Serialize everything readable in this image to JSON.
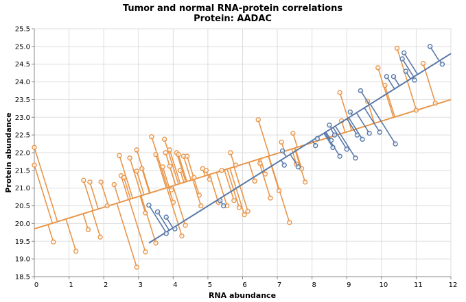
{
  "chart_data": {
    "type": "scatter",
    "title": "Tumor and normal RNA-protein correlations",
    "subtitle": "Protein: AADAC",
    "xlabel": "RNA abundance",
    "ylabel": "Protein abundance",
    "xlim": [
      0,
      12
    ],
    "ylim": [
      18.5,
      25.5
    ],
    "xticks": [
      "0",
      "1",
      "2",
      "3",
      "4",
      "5",
      "6",
      "7",
      "8",
      "9",
      "10",
      "11",
      "12"
    ],
    "yticks": [
      "18.5",
      "19.0",
      "19.5",
      "20.0",
      "20.5",
      "21.0",
      "21.5",
      "22.0",
      "22.5",
      "23.0",
      "23.5",
      "24.0",
      "24.5",
      "25.0",
      "25.5"
    ],
    "grid": true,
    "colors": {
      "orange": "#e8964a",
      "blue": "#5878a8"
    },
    "series": [
      {
        "color": "#e8964a",
        "fit_line": {
          "x": [
            0,
            12
          ],
          "y": [
            19.85,
            23.5
          ]
        },
        "points": [
          [
            0.0,
            22.15
          ],
          [
            0.0,
            21.65
          ],
          [
            0.55,
            19.48
          ],
          [
            1.2,
            19.22
          ],
          [
            1.42,
            21.22
          ],
          [
            1.55,
            19.83
          ],
          [
            1.6,
            21.17
          ],
          [
            1.92,
            21.17
          ],
          [
            1.9,
            19.62
          ],
          [
            2.1,
            20.5
          ],
          [
            2.3,
            21.1
          ],
          [
            2.45,
            21.92
          ],
          [
            2.5,
            21.35
          ],
          [
            2.58,
            21.3
          ],
          [
            2.75,
            21.85
          ],
          [
            2.95,
            22.08
          ],
          [
            2.95,
            21.48
          ],
          [
            2.95,
            18.77
          ],
          [
            3.1,
            21.55
          ],
          [
            3.2,
            20.3
          ],
          [
            3.2,
            19.2
          ],
          [
            3.38,
            22.45
          ],
          [
            3.5,
            21.95
          ],
          [
            3.5,
            19.45
          ],
          [
            3.7,
            21.6
          ],
          [
            3.75,
            22.38
          ],
          [
            3.78,
            22.0
          ],
          [
            3.9,
            22.08
          ],
          [
            3.9,
            21.62
          ],
          [
            3.95,
            20.95
          ],
          [
            4.0,
            20.6
          ],
          [
            4.1,
            22.0
          ],
          [
            4.15,
            21.95
          ],
          [
            4.2,
            21.5
          ],
          [
            4.25,
            19.65
          ],
          [
            4.3,
            21.9
          ],
          [
            4.35,
            19.95
          ],
          [
            4.4,
            21.9
          ],
          [
            4.6,
            21.3
          ],
          [
            4.75,
            20.8
          ],
          [
            4.8,
            20.5
          ],
          [
            4.85,
            21.55
          ],
          [
            4.95,
            21.5
          ],
          [
            5.05,
            21.25
          ],
          [
            5.3,
            20.6
          ],
          [
            5.4,
            21.5
          ],
          [
            5.55,
            20.5
          ],
          [
            5.65,
            22.0
          ],
          [
            5.75,
            20.65
          ],
          [
            5.8,
            21.65
          ],
          [
            5.9,
            20.45
          ],
          [
            6.05,
            20.25
          ],
          [
            6.15,
            20.35
          ],
          [
            6.35,
            21.2
          ],
          [
            6.45,
            22.93
          ],
          [
            6.5,
            21.7
          ],
          [
            6.65,
            21.4
          ],
          [
            6.8,
            20.72
          ],
          [
            7.05,
            20.93
          ],
          [
            7.12,
            22.3
          ],
          [
            7.35,
            20.03
          ],
          [
            7.45,
            22.55
          ],
          [
            7.55,
            21.68
          ],
          [
            7.7,
            21.55
          ],
          [
            7.8,
            21.17
          ],
          [
            8.8,
            23.7
          ],
          [
            8.85,
            22.9
          ],
          [
            9.6,
            23.45
          ],
          [
            9.9,
            24.4
          ],
          [
            10.1,
            23.9
          ],
          [
            10.45,
            24.95
          ],
          [
            11.0,
            23.2
          ],
          [
            11.2,
            24.52
          ],
          [
            11.55,
            23.4
          ]
        ]
      },
      {
        "color": "#5878a8",
        "fit_line": {
          "x": [
            3.3,
            12.0
          ],
          "y": [
            19.45,
            24.8
          ]
        },
        "points": [
          [
            3.3,
            20.52
          ],
          [
            3.55,
            20.33
          ],
          [
            3.8,
            20.18
          ],
          [
            3.8,
            19.72
          ],
          [
            4.05,
            19.85
          ],
          [
            5.35,
            20.65
          ],
          [
            5.45,
            20.5
          ],
          [
            7.15,
            22.05
          ],
          [
            7.2,
            21.65
          ],
          [
            7.6,
            21.6
          ],
          [
            8.1,
            22.2
          ],
          [
            8.15,
            22.4
          ],
          [
            8.5,
            22.78
          ],
          [
            8.55,
            22.35
          ],
          [
            8.6,
            22.15
          ],
          [
            8.65,
            22.5
          ],
          [
            8.8,
            21.9
          ],
          [
            9.0,
            22.1
          ],
          [
            9.1,
            23.15
          ],
          [
            9.25,
            21.85
          ],
          [
            9.3,
            22.5
          ],
          [
            9.4,
            23.75
          ],
          [
            9.45,
            22.38
          ],
          [
            9.65,
            22.55
          ],
          [
            9.95,
            22.58
          ],
          [
            10.15,
            24.15
          ],
          [
            10.35,
            24.15
          ],
          [
            10.4,
            22.25
          ],
          [
            10.6,
            24.65
          ],
          [
            10.65,
            24.82
          ],
          [
            10.7,
            24.3
          ],
          [
            10.95,
            24.05
          ],
          [
            11.4,
            25.0
          ],
          [
            11.75,
            24.5
          ]
        ]
      }
    ]
  }
}
